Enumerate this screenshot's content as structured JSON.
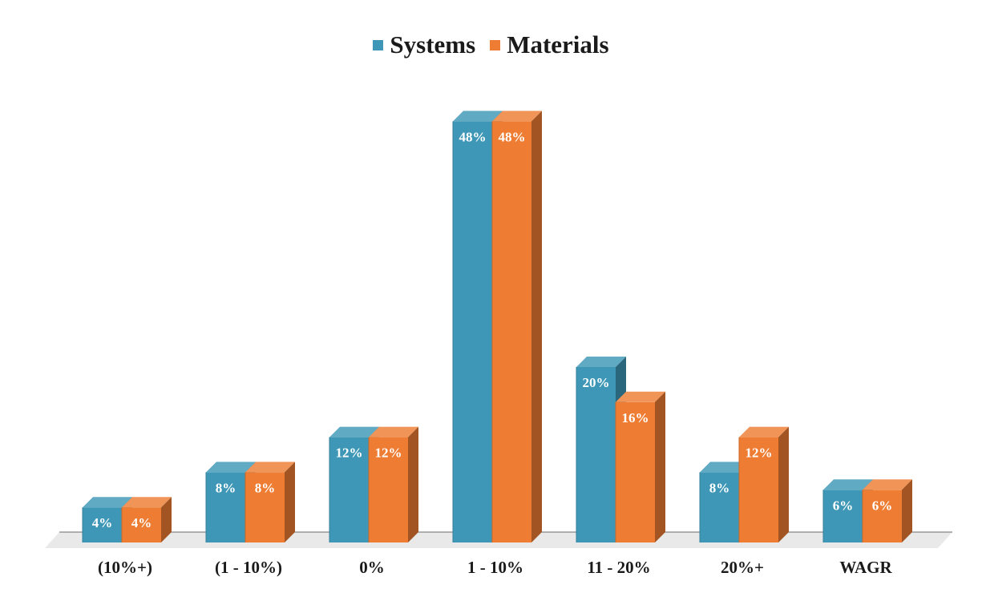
{
  "chart_data": {
    "type": "bar",
    "style": "3d-clustered-column",
    "title": "",
    "xlabel": "",
    "ylabel": "",
    "ylim": [
      0,
      50
    ],
    "grid": false,
    "legend_position": "top-center",
    "categories": [
      "(10%+)",
      "(1 - 10%)",
      "0%",
      "1 - 10%",
      "11 - 20%",
      "20%+",
      "WAGR"
    ],
    "series": [
      {
        "name": "Systems",
        "color": "#3E97B6",
        "values": [
          4,
          8,
          12,
          48,
          20,
          8,
          6
        ],
        "labels": [
          "4%",
          "8%",
          "12%",
          "48%",
          "20%",
          "8%",
          "6%"
        ]
      },
      {
        "name": "Materials",
        "color": "#EE7D33",
        "values": [
          4,
          8,
          12,
          48,
          16,
          12,
          6
        ],
        "labels": [
          "4%",
          "8%",
          "12%",
          "48%",
          "16%",
          "12%",
          "6%"
        ]
      }
    ]
  }
}
